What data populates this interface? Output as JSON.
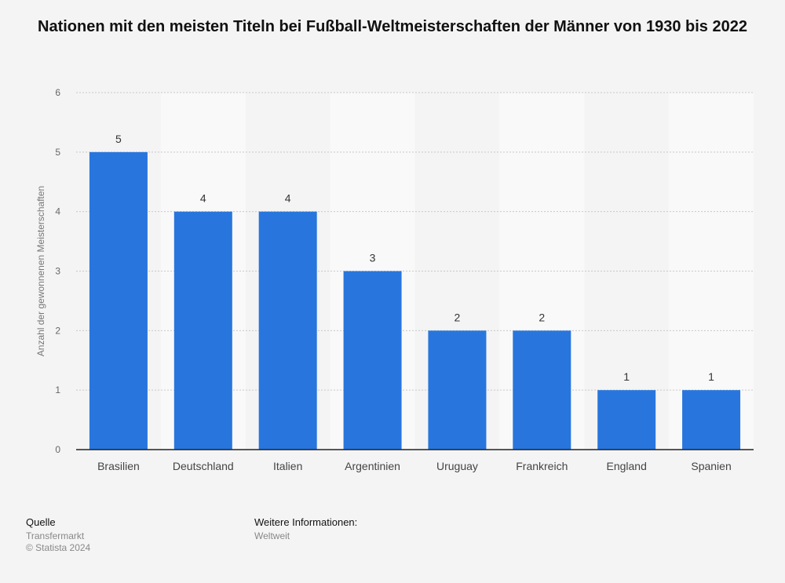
{
  "chart_data": {
    "type": "bar",
    "title": "Nationen mit den meisten Titeln bei Fußball-Weltmeisterschaften der Männer von 1930 bis 2022",
    "ylabel": "Anzahl der gewonnenen Meisterschaften",
    "xlabel": "",
    "categories": [
      "Brasilien",
      "Deutschland",
      "Italien",
      "Argentinien",
      "Uruguay",
      "Frankreich",
      "England",
      "Spanien"
    ],
    "values": [
      5,
      4,
      4,
      3,
      2,
      2,
      1,
      1
    ],
    "ylim": [
      0,
      6
    ],
    "yticks": [
      0,
      1,
      2,
      3,
      4,
      5,
      6
    ],
    "grid": true,
    "bar_color": "#2876dd"
  },
  "footer": {
    "source_heading": "Quelle",
    "source_lines": [
      "Transfermarkt",
      "© Statista 2024"
    ],
    "info_heading": "Weitere Informationen:",
    "info_lines": [
      "Weltweit"
    ]
  }
}
